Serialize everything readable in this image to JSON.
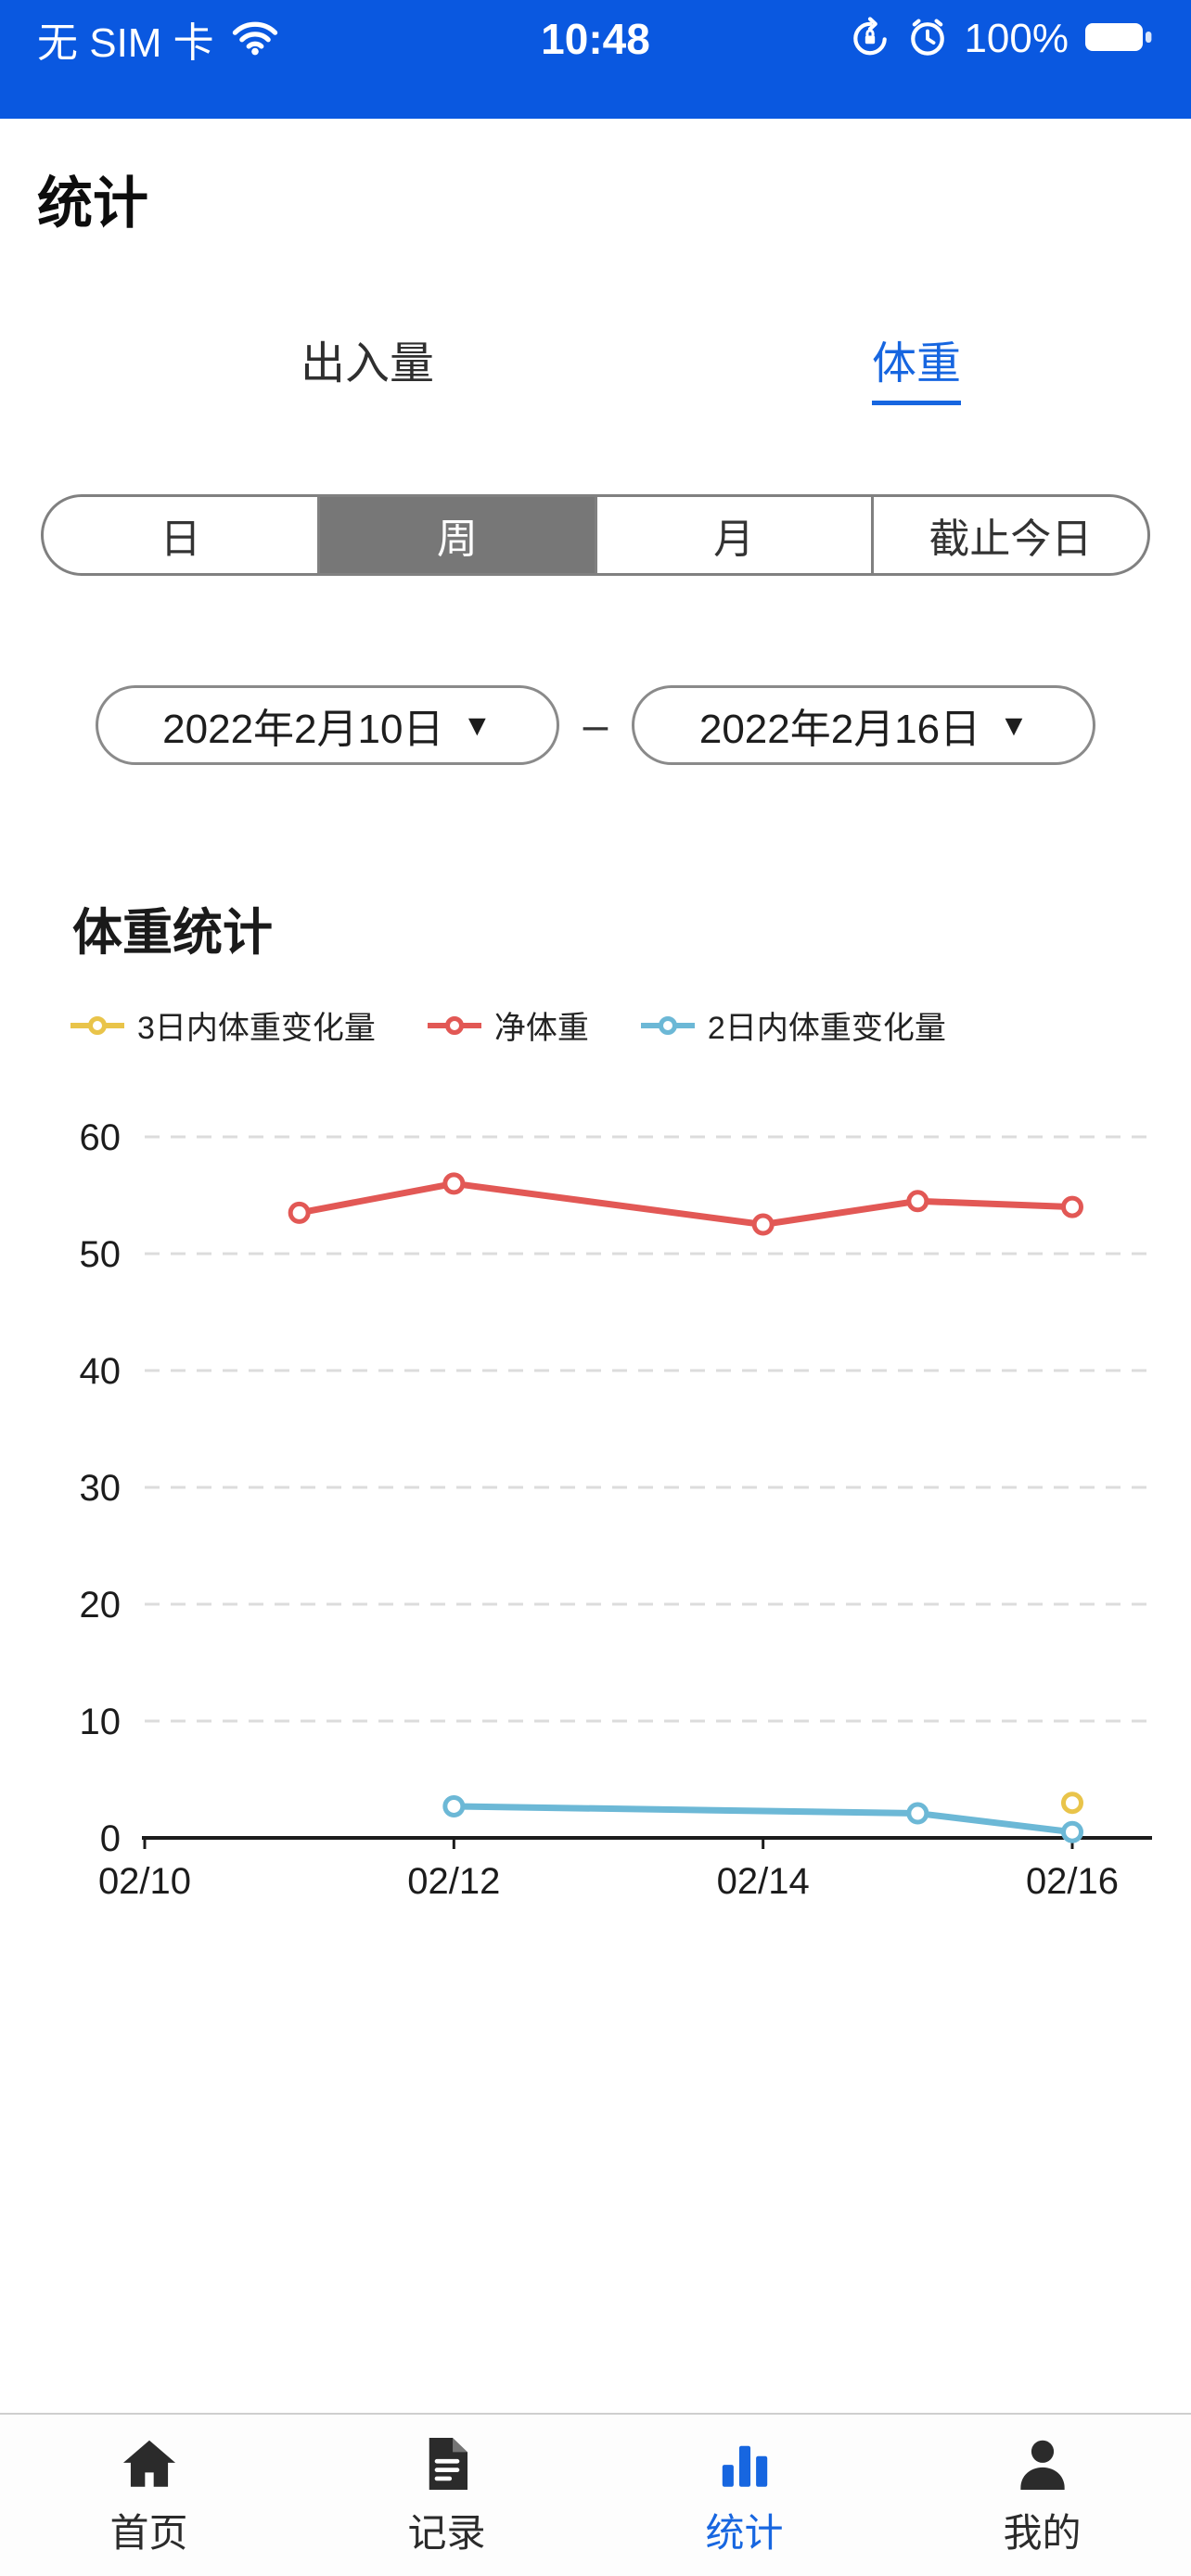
{
  "status_bar": {
    "carrier": "无 SIM 卡",
    "time": "10:48",
    "battery_percent": "100%",
    "icons": [
      "wifi-icon",
      "rotation-lock-icon",
      "alarm-icon",
      "battery-icon"
    ]
  },
  "header": {
    "title": "统计"
  },
  "top_tabs": {
    "intake": "出入量",
    "weight": "体重",
    "selected": "体重"
  },
  "period_segments": {
    "day": "日",
    "week": "周",
    "month": "月",
    "to_today": "截止今日",
    "selected": "周"
  },
  "date_range": {
    "start": "2022年2月10日",
    "end": "2022年2月16日",
    "separator": "–",
    "caret": "▼"
  },
  "chart_section": {
    "title": "体重统计"
  },
  "chart_data": {
    "type": "line",
    "title": "体重统计",
    "x_tick_labels": [
      "02/10",
      "02/12",
      "02/14",
      "02/16"
    ],
    "x_tick_positions": [
      0,
      2,
      4,
      6
    ],
    "x_range": [
      0,
      6
    ],
    "ylim": [
      0,
      60
    ],
    "y_ticks": [
      0,
      10,
      20,
      30,
      40,
      50,
      60
    ],
    "grid": "horizontal-dashed",
    "legend_position": "top",
    "series": [
      {
        "name": "3日内体重变化量",
        "color": "#e9c44a",
        "x": [
          6
        ],
        "values": [
          3
        ]
      },
      {
        "name": "净体重",
        "color": "#e25855",
        "x": [
          1,
          2,
          4,
          5,
          6
        ],
        "values": [
          53.5,
          56,
          52.5,
          54.5,
          54
        ]
      },
      {
        "name": "2日内体重变化量",
        "color": "#6cb8d6",
        "x": [
          2,
          5,
          6
        ],
        "values": [
          2.7,
          2.1,
          0.5
        ]
      }
    ]
  },
  "tab_bar": {
    "items": [
      {
        "label": "首页",
        "icon": "home-icon",
        "active": false
      },
      {
        "label": "记录",
        "icon": "records-icon",
        "active": false
      },
      {
        "label": "统计",
        "icon": "stats-icon",
        "active": true
      },
      {
        "label": "我的",
        "icon": "profile-icon",
        "active": false
      }
    ]
  },
  "colors": {
    "status_bar_background": "#0a58e0",
    "accent_blue": "#1766e0",
    "segment_selected_background": "#777777"
  }
}
